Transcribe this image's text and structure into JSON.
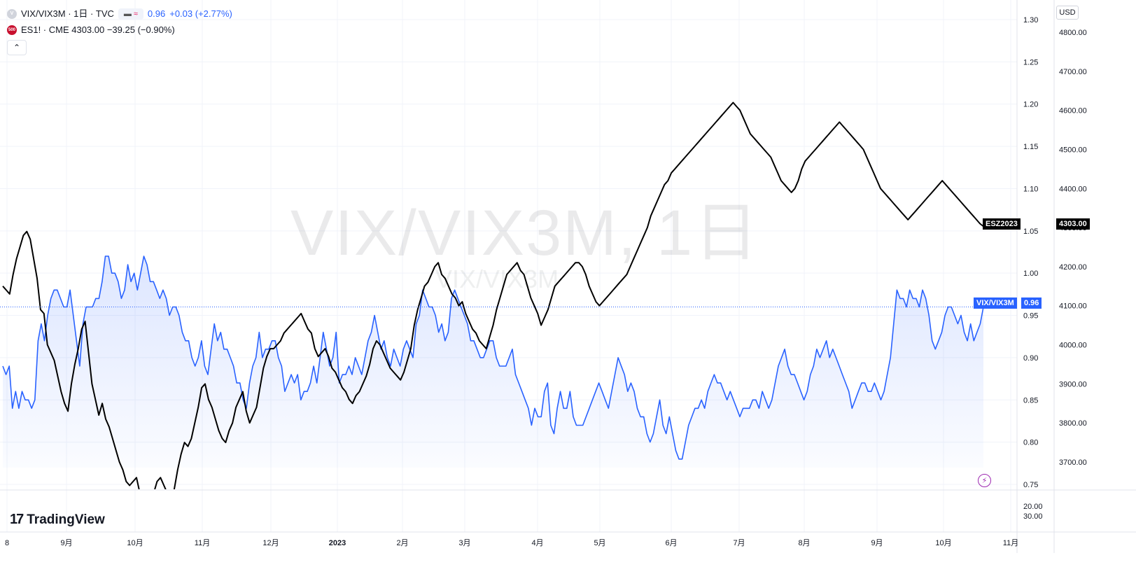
{
  "legend": {
    "main_symbol": "VIX/VIX3M · 1日 · TVC",
    "main_symbol_icon": "V",
    "main_value": "0.96",
    "main_change": "+0.03 (+2.77%)",
    "compare_icon": "≈",
    "es_icon": "500",
    "es_text": "ES1! · CME  4303.00  −39.25 (−0.90%)",
    "collapse_icon": "chevron-up-icon"
  },
  "watermark": {
    "big": "VIX/VIX3M, 1日",
    "small": "VIX/VIX3M"
  },
  "branding": {
    "logo_mark": "17",
    "logo_text": "TradingView"
  },
  "currency": "USD",
  "tags": {
    "es_name": "ESZ2023",
    "es_price": "4303.00",
    "vix_name": "VIX/VIX3M",
    "vix_price": "0.96"
  },
  "colors": {
    "vix": "#2962ff",
    "es": "#000000",
    "grid": "#f0f3fa"
  },
  "chart_data": {
    "type": "line",
    "x_axis_labels": [
      "8",
      "9月",
      "10月",
      "11月",
      "12月",
      "2023",
      "2月",
      "3月",
      "4月",
      "5月",
      "6月",
      "7月",
      "8月",
      "9月",
      "10月",
      "11月"
    ],
    "left_axis": {
      "ticks": [
        "1.30",
        "1.25",
        "1.20",
        "1.15",
        "1.10",
        "1.05",
        "1.00",
        "0.95",
        "0.90",
        "0.85",
        "0.80",
        "0.75"
      ],
      "range": [
        0.75,
        1.3
      ]
    },
    "right_axis": {
      "ticks": [
        "4800.00",
        "4700.00",
        "4600.00",
        "4500.00",
        "4400.00",
        "4300.00",
        "4200.00",
        "4100.00",
        "4000.00",
        "3900.00",
        "3800.00",
        "3700.00"
      ],
      "range": [
        3620,
        4840
      ]
    },
    "lower_pane_ticks": [
      "20.00",
      "30.00"
    ],
    "series": [
      {
        "name": "VIX/VIX3M",
        "axis": "left",
        "values": [
          0.89,
          0.88,
          0.89,
          0.84,
          0.86,
          0.84,
          0.86,
          0.85,
          0.85,
          0.84,
          0.85,
          0.92,
          0.94,
          0.92,
          0.95,
          0.97,
          0.98,
          0.98,
          0.97,
          0.96,
          0.96,
          0.98,
          0.95,
          0.92,
          0.89,
          0.94,
          0.96,
          0.96,
          0.96,
          0.97,
          0.97,
          0.99,
          1.02,
          1.02,
          1.0,
          1.0,
          0.99,
          0.97,
          0.98,
          1.01,
          0.99,
          1.0,
          0.98,
          1.0,
          1.02,
          1.01,
          0.99,
          0.99,
          0.98,
          0.97,
          0.98,
          0.97,
          0.95,
          0.96,
          0.96,
          0.95,
          0.93,
          0.92,
          0.92,
          0.9,
          0.89,
          0.9,
          0.92,
          0.89,
          0.88,
          0.91,
          0.94,
          0.92,
          0.93,
          0.91,
          0.91,
          0.9,
          0.89,
          0.87,
          0.87,
          0.85,
          0.84,
          0.87,
          0.89,
          0.9,
          0.93,
          0.9,
          0.91,
          0.91,
          0.92,
          0.92,
          0.9,
          0.89,
          0.86,
          0.87,
          0.88,
          0.87,
          0.88,
          0.85,
          0.86,
          0.86,
          0.87,
          0.89,
          0.87,
          0.9,
          0.93,
          0.91,
          0.89,
          0.9,
          0.93,
          0.87,
          0.88,
          0.88,
          0.89,
          0.88,
          0.9,
          0.89,
          0.88,
          0.9,
          0.92,
          0.93,
          0.95,
          0.93,
          0.91,
          0.92,
          0.9,
          0.89,
          0.91,
          0.9,
          0.89,
          0.91,
          0.92,
          0.91,
          0.9,
          0.94,
          0.95,
          0.98,
          0.97,
          0.96,
          0.96,
          0.95,
          0.93,
          0.94,
          0.92,
          0.93,
          0.97,
          0.98,
          0.97,
          0.96,
          0.95,
          0.94,
          0.92,
          0.92,
          0.91,
          0.9,
          0.9,
          0.91,
          0.92,
          0.92,
          0.9,
          0.89,
          0.89,
          0.89,
          0.9,
          0.91,
          0.88,
          0.87,
          0.86,
          0.85,
          0.84,
          0.82,
          0.84,
          0.83,
          0.83,
          0.86,
          0.87,
          0.82,
          0.81,
          0.84,
          0.86,
          0.84,
          0.84,
          0.86,
          0.83,
          0.82,
          0.82,
          0.82,
          0.83,
          0.84,
          0.85,
          0.86,
          0.87,
          0.86,
          0.85,
          0.84,
          0.86,
          0.88,
          0.9,
          0.89,
          0.88,
          0.86,
          0.87,
          0.86,
          0.84,
          0.83,
          0.83,
          0.81,
          0.8,
          0.81,
          0.83,
          0.85,
          0.82,
          0.81,
          0.83,
          0.81,
          0.79,
          0.78,
          0.78,
          0.8,
          0.82,
          0.83,
          0.84,
          0.84,
          0.85,
          0.84,
          0.86,
          0.87,
          0.88,
          0.87,
          0.87,
          0.86,
          0.85,
          0.86,
          0.85,
          0.84,
          0.83,
          0.84,
          0.84,
          0.84,
          0.85,
          0.85,
          0.84,
          0.86,
          0.85,
          0.84,
          0.85,
          0.87,
          0.89,
          0.9,
          0.91,
          0.89,
          0.88,
          0.88,
          0.87,
          0.86,
          0.85,
          0.86,
          0.88,
          0.89,
          0.91,
          0.9,
          0.91,
          0.92,
          0.9,
          0.91,
          0.9,
          0.89,
          0.88,
          0.87,
          0.86,
          0.84,
          0.85,
          0.86,
          0.87,
          0.87,
          0.86,
          0.86,
          0.87,
          0.86,
          0.85,
          0.86,
          0.88,
          0.9,
          0.94,
          0.98,
          0.97,
          0.97,
          0.96,
          0.98,
          0.97,
          0.97,
          0.96,
          0.98,
          0.97,
          0.95,
          0.92,
          0.91,
          0.92,
          0.93,
          0.95,
          0.96,
          0.96,
          0.95,
          0.94,
          0.95,
          0.93,
          0.92,
          0.94,
          0.92,
          0.93,
          0.94,
          0.96
        ]
      },
      {
        "name": "ES1!",
        "axis": "right",
        "values": [
          4150,
          4140,
          4130,
          4180,
          4220,
          4250,
          4280,
          4290,
          4270,
          4220,
          4170,
          4090,
          4080,
          4000,
          3980,
          3960,
          3920,
          3880,
          3850,
          3830,
          3900,
          3950,
          3990,
          4040,
          4060,
          3980,
          3900,
          3860,
          3820,
          3850,
          3810,
          3790,
          3760,
          3730,
          3700,
          3680,
          3650,
          3640,
          3650,
          3660,
          3620,
          3600,
          3590,
          3600,
          3620,
          3650,
          3660,
          3640,
          3620,
          3610,
          3630,
          3680,
          3720,
          3750,
          3740,
          3760,
          3800,
          3840,
          3890,
          3900,
          3860,
          3840,
          3810,
          3780,
          3760,
          3750,
          3780,
          3800,
          3840,
          3860,
          3880,
          3830,
          3800,
          3820,
          3840,
          3890,
          3940,
          3970,
          3990,
          3990,
          4000,
          4010,
          4030,
          4040,
          4050,
          4060,
          4070,
          4080,
          4060,
          4040,
          4030,
          3990,
          3970,
          3980,
          3990,
          3970,
          3940,
          3930,
          3910,
          3890,
          3880,
          3860,
          3850,
          3870,
          3880,
          3900,
          3920,
          3950,
          3990,
          4010,
          4000,
          3980,
          3960,
          3940,
          3930,
          3920,
          3910,
          3930,
          3960,
          3990,
          4050,
          4090,
          4120,
          4150,
          4160,
          4180,
          4200,
          4210,
          4180,
          4170,
          4150,
          4130,
          4120,
          4100,
          4110,
          4080,
          4060,
          4040,
          4030,
          4010,
          4000,
          3990,
          4020,
          4050,
          4090,
          4120,
          4150,
          4180,
          4190,
          4200,
          4210,
          4190,
          4180,
          4150,
          4120,
          4100,
          4080,
          4050,
          4070,
          4090,
          4120,
          4150,
          4160,
          4170,
          4180,
          4190,
          4200,
          4210,
          4210,
          4200,
          4180,
          4150,
          4130,
          4110,
          4100,
          4110,
          4120,
          4130,
          4140,
          4150,
          4160,
          4170,
          4180,
          4200,
          4220,
          4240,
          4260,
          4280,
          4300,
          4330,
          4350,
          4370,
          4390,
          4410,
          4420,
          4440,
          4450,
          4460,
          4470,
          4480,
          4490,
          4500,
          4510,
          4520,
          4530,
          4540,
          4550,
          4560,
          4570,
          4580,
          4590,
          4600,
          4610,
          4620,
          4610,
          4600,
          4580,
          4560,
          4540,
          4530,
          4520,
          4510,
          4500,
          4490,
          4480,
          4460,
          4440,
          4420,
          4410,
          4400,
          4390,
          4400,
          4420,
          4450,
          4470,
          4480,
          4490,
          4500,
          4510,
          4520,
          4530,
          4540,
          4550,
          4560,
          4570,
          4560,
          4550,
          4540,
          4530,
          4520,
          4510,
          4500,
          4480,
          4460,
          4440,
          4420,
          4400,
          4390,
          4380,
          4370,
          4360,
          4350,
          4340,
          4330,
          4320,
          4330,
          4340,
          4350,
          4360,
          4370,
          4380,
          4390,
          4400,
          4410,
          4420,
          4410,
          4400,
          4390,
          4380,
          4370,
          4360,
          4350,
          4340,
          4330,
          4320,
          4310,
          4303
        ]
      }
    ]
  }
}
